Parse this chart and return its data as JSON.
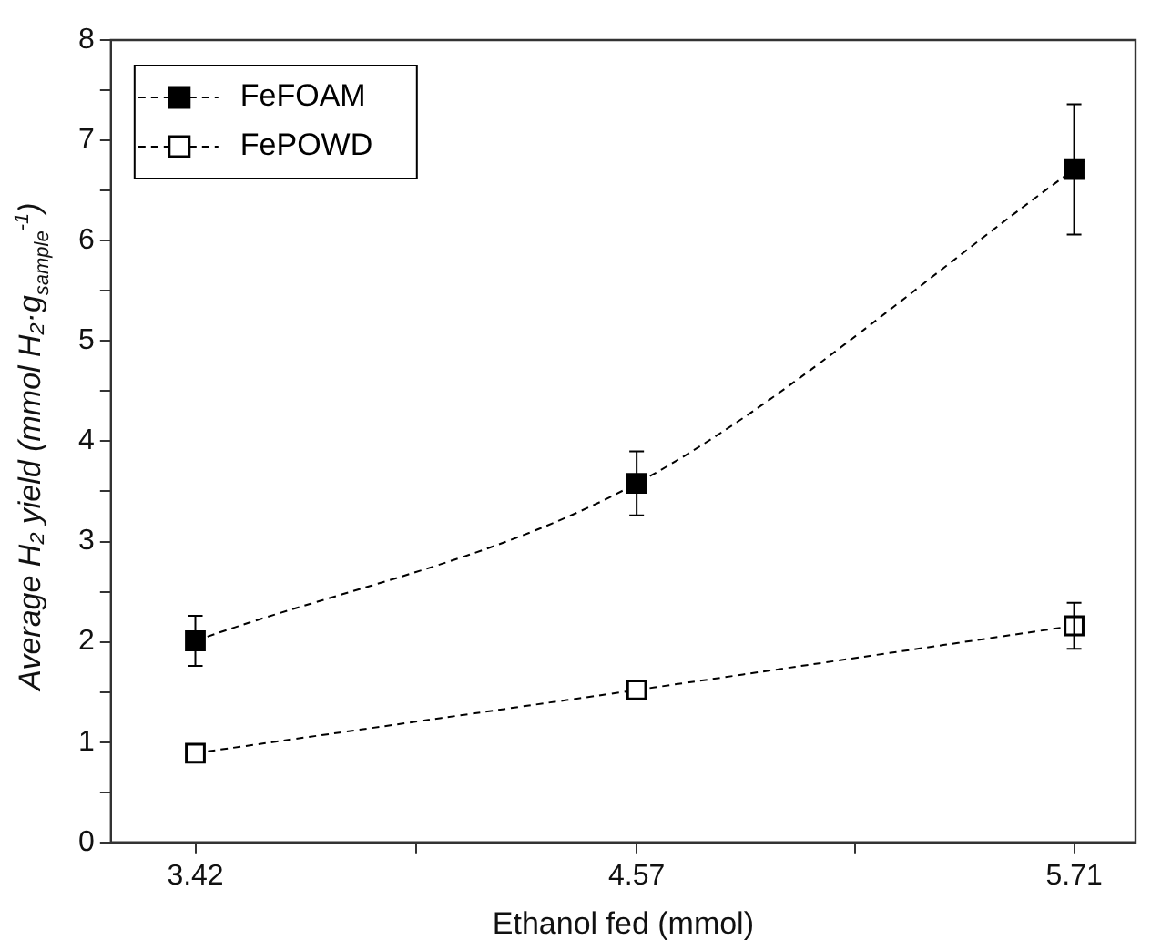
{
  "chart_data": {
    "type": "line",
    "xlabel": "Ethanol fed (mmol)",
    "ylabel": "Average H₂ yield (mmol H₂·g$_{sample}$$^{-1}$)",
    "x": [
      3.42,
      4.57,
      5.71
    ],
    "series": [
      {
        "name": "FeFOAM",
        "color": "#000000",
        "values": [
          2.01,
          3.58,
          6.71
        ],
        "errors": [
          0.25,
          0.32,
          0.65
        ]
      },
      {
        "name": "FePOWD",
        "color": "#ffffff",
        "values": [
          0.89,
          1.52,
          2.16
        ],
        "errors": [
          null,
          null,
          0.23
        ]
      }
    ],
    "xlim": [
      3.2,
      5.87
    ],
    "xticks": [
      3.42,
      {
        "value": 3.995,
        "label": null
      },
      4.57,
      {
        "value": 5.14,
        "label": null
      },
      5.71
    ],
    "ylim": [
      0,
      8
    ],
    "yticks": [
      0,
      {
        "value": 0.5,
        "label": null
      },
      1,
      {
        "value": 1.5,
        "label": null
      },
      2,
      {
        "value": 2.5,
        "label": null
      },
      3,
      {
        "value": 3.5,
        "label": null
      },
      4,
      {
        "value": 4.5,
        "label": null
      },
      5,
      {
        "value": 5.5,
        "label": null
      },
      6,
      {
        "value": 6.5,
        "label": null
      },
      7,
      {
        "value": 7.5,
        "label": null
      },
      8
    ],
    "grid": false,
    "legend": "top left",
    "marker": "square",
    "line_style": "dashed"
  }
}
